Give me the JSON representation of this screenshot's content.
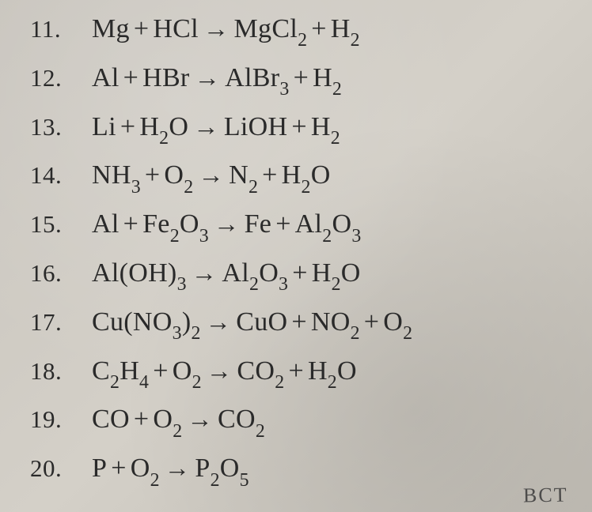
{
  "background_color": "#cbc7bf",
  "text_color": "#2a2a2a",
  "number_fontsize": 31,
  "equation_fontsize": 34,
  "font_family": "Times New Roman",
  "equations": [
    {
      "n": "11.",
      "lhs_parts": [
        "Mg",
        "HCl"
      ],
      "rhs_parts": [
        "MgCl₂",
        "H₂"
      ]
    },
    {
      "n": "12.",
      "lhs_parts": [
        "Al",
        "HBr"
      ],
      "rhs_parts": [
        "AlBr₃",
        "H₂"
      ]
    },
    {
      "n": "13.",
      "lhs_parts": [
        "Li",
        "H₂O"
      ],
      "rhs_parts": [
        "LiOH",
        "H₂"
      ]
    },
    {
      "n": "14.",
      "lhs_parts": [
        "NH₃",
        "O₂"
      ],
      "rhs_parts": [
        "N₂",
        "H₂O"
      ]
    },
    {
      "n": "15.",
      "lhs_parts": [
        "Al",
        "Fe₂O₃"
      ],
      "rhs_parts": [
        "Fe",
        "Al₂O₃"
      ]
    },
    {
      "n": "16.",
      "lhs_parts": [
        "Al(OH)₃"
      ],
      "rhs_parts": [
        "Al₂O₃",
        "H₂O"
      ]
    },
    {
      "n": "17.",
      "lhs_parts": [
        "Cu(NO₃)₂"
      ],
      "rhs_parts": [
        "CuO",
        "NO₂",
        "O₂"
      ]
    },
    {
      "n": "18.",
      "lhs_parts": [
        "C₂H₄",
        "O₂"
      ],
      "rhs_parts": [
        "CO₂",
        "H₂O"
      ]
    },
    {
      "n": "19.",
      "lhs_parts": [
        "CO",
        "O₂"
      ],
      "rhs_parts": [
        "CO₂"
      ]
    },
    {
      "n": "20.",
      "lhs_parts": [
        "P",
        "O₂"
      ],
      "rhs_parts": [
        "P₂O₅"
      ]
    }
  ],
  "arrow_glyph": "→",
  "plus_glyph": "+",
  "footer_fragment": "BCT"
}
